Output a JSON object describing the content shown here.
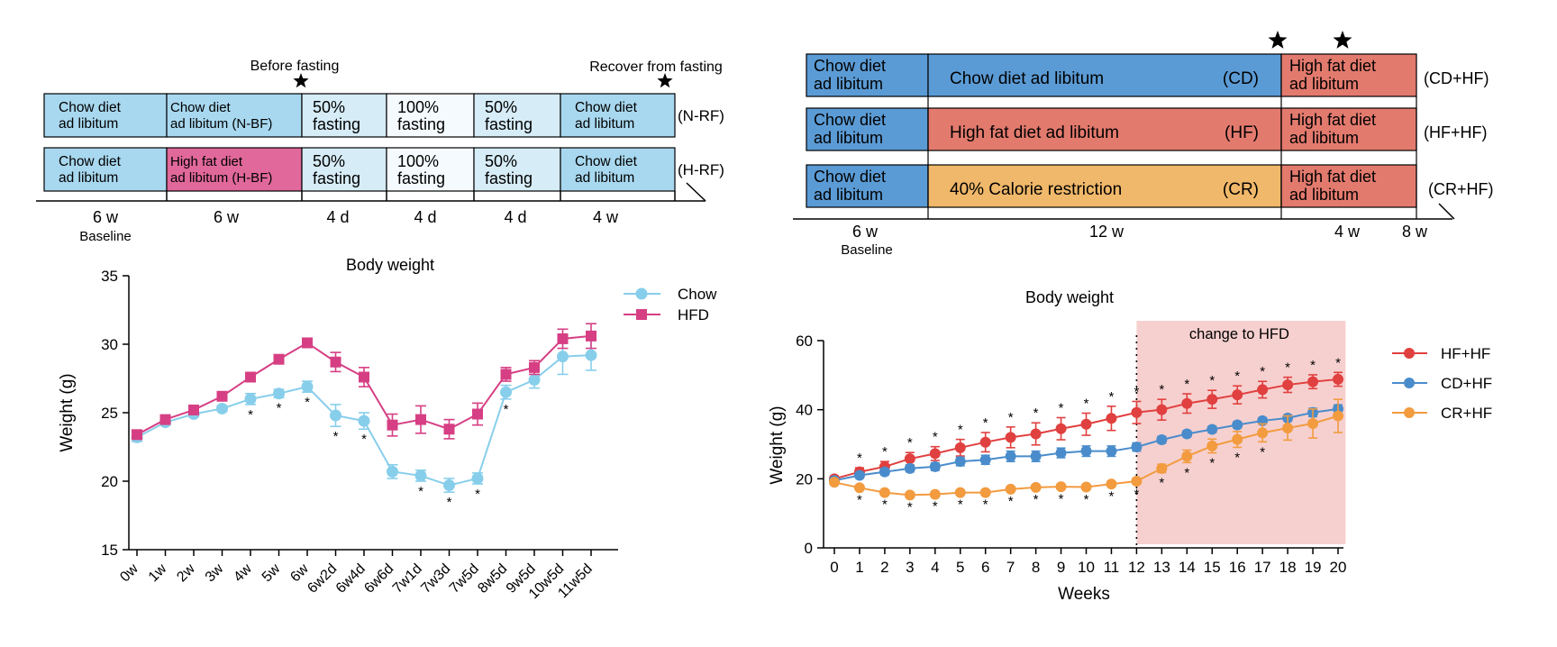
{
  "protocol_left": {
    "top_label_before": "Before fasting",
    "top_label_recover": "Recover from fasting",
    "rows": [
      {
        "tag": "(N-RF)",
        "cells": [
          "Chow diet\nad libitum",
          "Chow diet\nad libitum (N-BF)",
          "50%\nfasting",
          "100%\nfasting",
          "50%\nfasting",
          "Chow diet\nad libitum"
        ]
      },
      {
        "tag": "(H-RF)",
        "cells": [
          "Chow diet\nad libitum",
          "High fat diet\nad libitum (H-BF)",
          "50%\nfasting",
          "100%\nfasting",
          "50%\nfasting",
          "Chow diet\nad libitum"
        ]
      }
    ],
    "durations": [
      "6 w",
      "6 w",
      "4 d",
      "4 d",
      "4 d",
      "4 w"
    ],
    "baseline_label": "Baseline",
    "colors": {
      "chow": "#a8d8ef",
      "hfd": "#e0689b",
      "fast50": "#d6ecf7",
      "fast100": "#f4fafd"
    }
  },
  "protocol_right": {
    "rows": [
      {
        "tag": "(CD+HF)",
        "baseline": "Chow diet\nad libitum",
        "main": "Chow diet ad libitum",
        "abbr": "(CD)",
        "end": "High fat diet\nad libitum",
        "main_color": "#5b9bd5"
      },
      {
        "tag": "(HF+HF)",
        "baseline": "Chow diet\nad libitum",
        "main": "High fat diet ad libitum",
        "abbr": "(HF)",
        "end": "High fat diet\nad libitum",
        "main_color": "#e37a6e"
      },
      {
        "tag": "(CR+HF)",
        "baseline": "Chow diet\nad libitum",
        "main": "40% Calorie restriction",
        "abbr": "(CR)",
        "end": "High fat diet\nad libitum",
        "main_color": "#f0b86a"
      }
    ],
    "durations": [
      "6 w",
      "12 w",
      "4 w",
      "8 w"
    ],
    "baseline_label": "Baseline",
    "colors": {
      "baseline": "#5b9bd5",
      "end": "#e37a6e"
    }
  },
  "chart_data": [
    {
      "type": "line",
      "title": "Body weight",
      "xlabel": "",
      "ylabel": "Weight (g)",
      "ylim": [
        15,
        35
      ],
      "yticks": [
        15,
        20,
        25,
        30,
        35
      ],
      "categories": [
        "0w",
        "1w",
        "2w",
        "3w",
        "4w",
        "5w",
        "6w",
        "6w2d",
        "6w4d",
        "6w6d",
        "7w1d",
        "7w3d",
        "7w5d",
        "8w5d",
        "9w5d",
        "10w5d",
        "11w5d"
      ],
      "legend": "top-right",
      "series": [
        {
          "name": "Chow",
          "color": "#87ceeb",
          "marker": "circle",
          "values": [
            23.2,
            24.3,
            24.9,
            25.3,
            26.0,
            26.4,
            26.9,
            24.8,
            24.4,
            20.7,
            20.4,
            19.7,
            20.2,
            26.5,
            27.4,
            29.1,
            29.2
          ],
          "errors": [
            0.3,
            0.2,
            0.2,
            0.2,
            0.4,
            0.3,
            0.4,
            0.8,
            0.6,
            0.5,
            0.4,
            0.5,
            0.4,
            0.5,
            0.6,
            1.3,
            1.1
          ]
        },
        {
          "name": "HFD",
          "color": "#d63f84",
          "marker": "square",
          "values": [
            23.4,
            24.5,
            25.2,
            26.2,
            27.6,
            28.9,
            30.1,
            28.7,
            27.6,
            24.1,
            24.5,
            23.8,
            24.9,
            27.8,
            28.3,
            30.4,
            30.6
          ],
          "errors": [
            0.2,
            0.2,
            0.2,
            0.2,
            0.2,
            0.3,
            0.3,
            0.7,
            0.7,
            0.8,
            1.0,
            0.7,
            0.8,
            0.5,
            0.5,
            0.7,
            0.9
          ]
        }
      ],
      "significance": {
        "symbol": "*",
        "categories": [
          "4w",
          "5w",
          "6w",
          "6w2d",
          "6w4d",
          "7w1d",
          "7w3d",
          "7w5d",
          "8w5d"
        ]
      }
    },
    {
      "type": "line",
      "title": "Body weight",
      "xlabel": "Weeks",
      "ylabel": "Weight (g)",
      "ylim": [
        0,
        60
      ],
      "yticks": [
        0,
        20,
        40,
        60
      ],
      "x": [
        0,
        1,
        2,
        3,
        4,
        5,
        6,
        7,
        8,
        9,
        10,
        11,
        12,
        13,
        14,
        15,
        16,
        17,
        18,
        19,
        20
      ],
      "legend": "top-right",
      "annotation": {
        "text": "change to HFD",
        "x_start": 12,
        "x_end": 20.3,
        "color": "#f6d0cf"
      },
      "series": [
        {
          "name": "HF+HF",
          "color": "#e0403f",
          "marker": "circle",
          "values": [
            20,
            22,
            23.5,
            25.8,
            27.3,
            29,
            30.6,
            32,
            33,
            34.5,
            35.8,
            37.5,
            39.2,
            40,
            41.8,
            43,
            44.3,
            45.8,
            47.2,
            48.1,
            48.8
          ],
          "errors": [
            0.8,
            1.2,
            1.5,
            1.8,
            2.0,
            2.4,
            2.8,
            3.0,
            3.2,
            3.2,
            3.2,
            3.5,
            3.2,
            3.0,
            2.8,
            2.6,
            2.6,
            2.4,
            2.2,
            2.0,
            2.0
          ]
        },
        {
          "name": "CD+HF",
          "color": "#4a8ccb",
          "marker": "circle",
          "values": [
            19.5,
            21,
            22,
            23,
            23.5,
            25,
            25.5,
            26.5,
            26.5,
            27.5,
            28,
            28,
            29.2,
            31.3,
            33,
            34.3,
            35.6,
            36.8,
            37.6,
            39.2,
            40.2
          ],
          "errors": [
            0.5,
            0.8,
            0.9,
            1.0,
            1.1,
            1.2,
            1.3,
            1.5,
            1.5,
            1.4,
            1.5,
            1.5,
            1.2,
            1.0,
            0.9,
            0.9,
            0.9,
            0.9,
            0.9,
            1.2,
            1.2
          ]
        },
        {
          "name": "CR+HF",
          "color": "#f29b3f",
          "marker": "circle",
          "values": [
            19,
            17.4,
            16,
            15.3,
            15.5,
            16,
            16,
            17,
            17.5,
            17.7,
            17.6,
            18.5,
            19.3,
            23,
            26.5,
            29.5,
            31.4,
            33.3,
            34.7,
            36,
            38.2
          ],
          "errors": [
            0.8,
            0.6,
            0.5,
            0.5,
            0.5,
            0.5,
            0.5,
            0.6,
            0.6,
            0.6,
            0.6,
            0.6,
            0.8,
            1.2,
            1.8,
            2.0,
            2.3,
            2.6,
            3.5,
            4.2,
            4.8
          ]
        }
      ],
      "significance_upper": {
        "symbol": "*",
        "x": [
          1,
          2,
          3,
          4,
          5,
          6,
          7,
          8,
          9,
          10,
          11,
          12,
          13,
          14,
          15,
          16,
          17,
          18,
          19,
          20
        ]
      },
      "significance_lower": {
        "symbol": "*",
        "x": [
          1,
          2,
          3,
          4,
          5,
          6,
          7,
          8,
          9,
          10,
          11,
          12,
          13,
          14,
          15,
          16,
          17
        ]
      }
    }
  ]
}
